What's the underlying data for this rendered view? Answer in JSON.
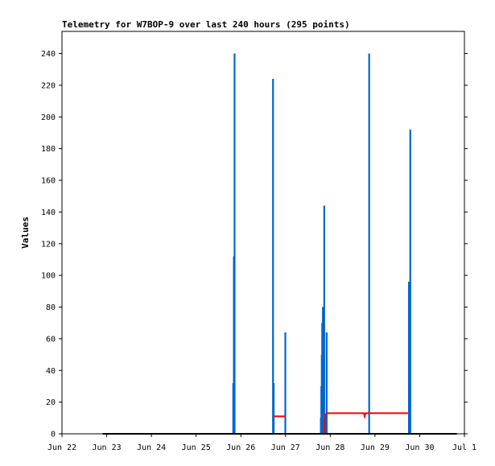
{
  "chart_data": {
    "type": "bar",
    "title": "Telemetry for W7BOP-9 over last 240 hours (295 points)",
    "xlabel": "",
    "ylabel": "Values",
    "ylim": [
      0,
      254
    ],
    "yticks": [
      0,
      20,
      40,
      60,
      80,
      100,
      120,
      140,
      160,
      180,
      200,
      220,
      240
    ],
    "xlim": [
      "Jun 22",
      "Jul 1"
    ],
    "xticks": [
      {
        "label": "Jun 22",
        "x": 0
      },
      {
        "label": "Jun 23",
        "x": 1
      },
      {
        "label": "Jun 24",
        "x": 2
      },
      {
        "label": "Jun 25",
        "x": 3
      },
      {
        "label": "Jun 26",
        "x": 4
      },
      {
        "label": "Jun 27",
        "x": 5
      },
      {
        "label": "Jun 28",
        "x": 6
      },
      {
        "label": "Jun 29",
        "x": 7
      },
      {
        "label": "Jun 30",
        "x": 8
      },
      {
        "label": "Jul 1",
        "x": 9
      }
    ],
    "grid": false,
    "legend": "none",
    "series": [
      {
        "color": "#0066cc",
        "style": "impulse",
        "points": [
          {
            "x": 3.83,
            "y": 32
          },
          {
            "x": 3.845,
            "y": 112
          },
          {
            "x": 3.86,
            "y": 240
          },
          {
            "x": 4.72,
            "y": 224
          },
          {
            "x": 4.735,
            "y": 32
          },
          {
            "x": 4.995,
            "y": 64
          },
          {
            "x": 5.79,
            "y": 10
          },
          {
            "x": 5.8,
            "y": 30
          },
          {
            "x": 5.81,
            "y": 50
          },
          {
            "x": 5.82,
            "y": 70
          },
          {
            "x": 5.835,
            "y": 80
          },
          {
            "x": 5.85,
            "y": 40
          },
          {
            "x": 5.865,
            "y": 144
          },
          {
            "x": 5.88,
            "y": 12
          },
          {
            "x": 5.895,
            "y": 8
          },
          {
            "x": 5.92,
            "y": 64
          },
          {
            "x": 6.87,
            "y": 240
          },
          {
            "x": 7.76,
            "y": 96
          },
          {
            "x": 7.775,
            "y": 32
          },
          {
            "x": 7.79,
            "y": 192
          }
        ]
      },
      {
        "color": "#ff0000",
        "style": "line",
        "segments": [
          [
            [
              4.73,
              11
            ],
            [
              4.99,
              11
            ]
          ],
          [
            [
              5.87,
              0
            ],
            [
              5.89,
              12
            ],
            [
              5.92,
              13
            ],
            [
              6.75,
              13
            ],
            [
              6.77,
              11
            ],
            [
              6.79,
              13
            ],
            [
              7.74,
              13
            ]
          ]
        ]
      },
      {
        "color": "#000000",
        "style": "line",
        "segments": [
          [
            [
              0.91,
              0
            ],
            [
              8.83,
              0
            ]
          ]
        ]
      }
    ]
  }
}
